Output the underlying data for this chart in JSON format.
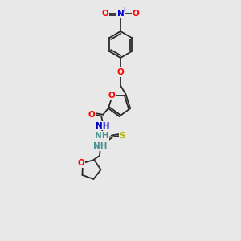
{
  "background_color": "#e8e8e8",
  "bond_color": "#2a2a2a",
  "atom_colors": {
    "O": "#ff0000",
    "N": "#0000cc",
    "S": "#b8b800",
    "NH_teal": "#4a9090",
    "C": "#2a2a2a"
  },
  "figsize": [
    3.0,
    3.0
  ],
  "dpi": 100
}
